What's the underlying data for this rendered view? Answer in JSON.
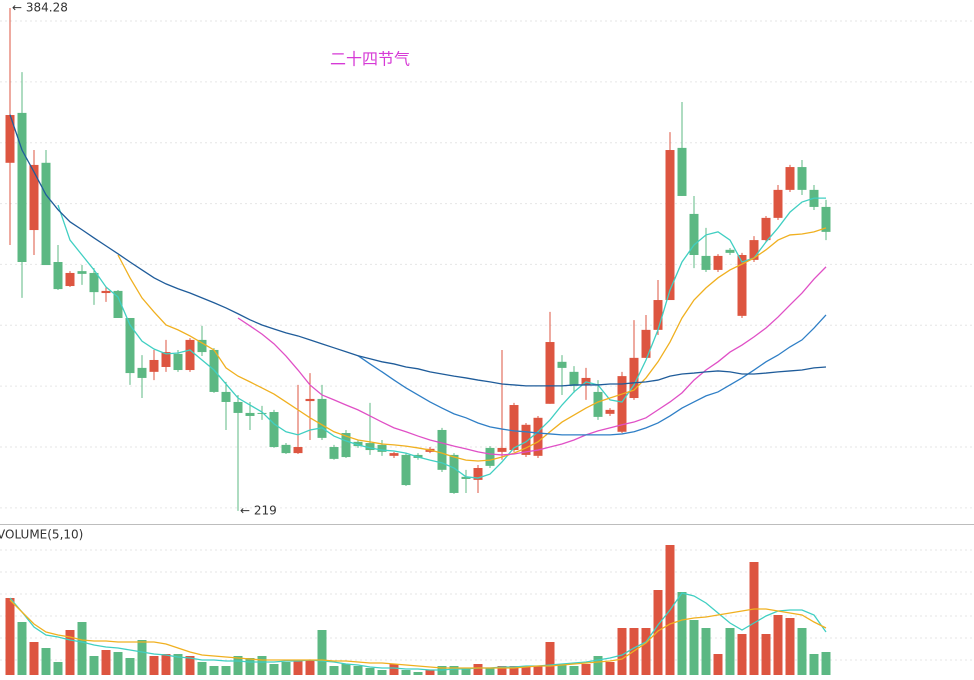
{
  "chart_data": [
    {
      "type": "candlestick",
      "title": "二十四节气",
      "annotations": [
        {
          "label": "← 384.28",
          "value": 384.28
        },
        {
          "label": "← 219",
          "value": 219
        }
      ],
      "open": [
        333.4,
        349.8,
        311.3,
        333.4,
        300.8,
        292.9,
        297.8,
        297.2,
        290.6,
        291.3,
        282.4,
        266.0,
        264.7,
        266.3,
        270.6,
        265.3,
        275.2,
        271.9,
        258.1,
        254.8,
        251.2,
        251.2,
        251.5,
        240.7,
        238.0,
        255.1,
        255.8,
        240.0,
        244.6,
        241.7,
        241.3,
        240.7,
        237.1,
        237.4,
        237.4,
        238.4,
        245.6,
        237.4,
        230.2,
        229.2,
        239.7,
        238.4,
        239.0,
        237.4,
        237.1,
        254.2,
        268.0,
        264.7,
        260.4,
        258.1,
        250.9,
        245.0,
        256.1,
        269.3,
        278.5,
        288.3,
        338.3,
        316.6,
        302.8,
        298.2,
        304.8,
        283.1,
        301.5,
        308.0,
        315.3,
        324.5,
        332.0,
        324.5,
        318.9
      ],
      "high": [
        384.28,
        363.2,
        337.6,
        337.6,
        306.4,
        297.8,
        299.8,
        298.8,
        292.6,
        291.6,
        282.4,
        270.2,
        271.9,
        275.2,
        271.9,
        275.8,
        279.8,
        272.5,
        261.4,
        257.1,
        254.8,
        253.5,
        252.2,
        241.3,
        260.4,
        264.3,
        260.4,
        240.7,
        245.6,
        242.3,
        254.5,
        242.3,
        238.4,
        238.0,
        238.0,
        240.0,
        246.3,
        238.0,
        232.5,
        234.1,
        240.3,
        271.9,
        254.5,
        247.9,
        250.2,
        284.4,
        270.2,
        266.6,
        266.0,
        262.0,
        252.8,
        264.7,
        281.7,
        283.4,
        294.9,
        343.5,
        353.4,
        322.5,
        312.0,
        303.4,
        305.4,
        303.8,
        309.3,
        315.9,
        326.1,
        332.7,
        334.3,
        326.1,
        321.2
      ],
      "low": [
        306.4,
        289.0,
        303.1,
        299.8,
        291.6,
        292.6,
        293.3,
        286.7,
        287.7,
        282.4,
        260.4,
        256.1,
        262.0,
        264.7,
        264.7,
        264.7,
        269.9,
        257.8,
        245.6,
        219,
        245.6,
        248.9,
        239.7,
        237.7,
        237.7,
        242.3,
        242.3,
        235.8,
        236.4,
        239.7,
        237.4,
        237.1,
        236.4,
        227.2,
        235.8,
        238.0,
        231.8,
        224.6,
        224.9,
        224.9,
        233.1,
        235.8,
        238.4,
        236.7,
        236.4,
        254.2,
        257.1,
        257.8,
        255.5,
        248.9,
        250.2,
        244.6,
        255.5,
        269.3,
        276.8,
        288.3,
        322.5,
        298.8,
        297.5,
        297.5,
        303.1,
        282.4,
        300.8,
        307.4,
        314.6,
        323.8,
        322.8,
        317.9,
        308.0
      ],
      "close": [
        349.1,
        300.8,
        332.7,
        299.8,
        291.9,
        297.2,
        296.9,
        290.9,
        291.3,
        282.4,
        264.3,
        262.7,
        268.6,
        271.2,
        265.3,
        275.2,
        271.2,
        258.1,
        254.8,
        251.2,
        250.2,
        250.9,
        240.0,
        238.0,
        240.0,
        255.8,
        243.0,
        236.1,
        236.7,
        240.3,
        239.0,
        238.4,
        238.0,
        227.5,
        236.4,
        239.4,
        232.5,
        224.9,
        229.5,
        233.1,
        233.8,
        239.7,
        253.8,
        247.3,
        249.6,
        274.5,
        266.0,
        260.1,
        262.7,
        249.9,
        252.2,
        263.3,
        269.3,
        278.5,
        288.3,
        337.6,
        322.5,
        303.1,
        298.2,
        302.8,
        303.8,
        303.1,
        308.0,
        315.3,
        324.5,
        332.0,
        324.5,
        318.9,
        310.7
      ],
      "up_color": "#dd5540",
      "down_color": "#5cb883",
      "ma_series": [
        {
          "color": "#40cfc2",
          "values": [
            null,
            null,
            null,
            null,
            319.5,
            308.0,
            303.1,
            298.2,
            292.6,
            289.3,
            280.1,
            274.8,
            272.2,
            270.6,
            270.9,
            271.9,
            268.6,
            265.3,
            260.7,
            256.1,
            253.8,
            251.5,
            247.6,
            245.0,
            244.0,
            245.6,
            246.3,
            243.6,
            242.0,
            240.7,
            239.7,
            239.0,
            238.7,
            238.0,
            236.7,
            235.7,
            234.8,
            233.1,
            230.2,
            229.8,
            231.1,
            235.1,
            239.7,
            241.7,
            245.0,
            248.9,
            253.8,
            258.1,
            261.4,
            260.4,
            255.5,
            254.8,
            260.4,
            268.6,
            278.5,
            291.6,
            300.8,
            306.4,
            309.7,
            310.7,
            308.0,
            300.8,
            302.1,
            307.4,
            312.0,
            317.2,
            320.5,
            321.8,
            321.8
          ]
        },
        {
          "color": "#f0b020",
          "values": [
            null,
            null,
            null,
            null,
            null,
            null,
            null,
            null,
            null,
            303.1,
            295.6,
            289.0,
            284.4,
            280.1,
            278.5,
            276.5,
            274.2,
            271.9,
            266.0,
            263.3,
            261.4,
            259.4,
            257.4,
            254.8,
            252.2,
            249.6,
            247.3,
            245.0,
            243.6,
            242.3,
            241.7,
            241.0,
            240.7,
            240.3,
            239.7,
            239.0,
            238.0,
            236.7,
            235.7,
            235.4,
            235.7,
            236.7,
            238.0,
            239.7,
            241.7,
            245.0,
            248.2,
            250.5,
            252.8,
            254.8,
            256.1,
            257.4,
            258.7,
            262.7,
            268.0,
            274.5,
            282.4,
            288.3,
            292.3,
            295.6,
            298.2,
            300.1,
            302.1,
            304.8,
            308.0,
            309.7,
            310.0,
            310.7,
            312.0
          ]
        },
        {
          "color": "#e050c6",
          "values": [
            null,
            null,
            null,
            null,
            null,
            null,
            null,
            null,
            null,
            null,
            null,
            null,
            null,
            null,
            null,
            null,
            null,
            null,
            null,
            282.4,
            279.8,
            277.1,
            273.9,
            269.9,
            265.3,
            260.4,
            257.1,
            255.5,
            253.8,
            252.2,
            250.2,
            248.2,
            246.3,
            245.0,
            243.6,
            242.3,
            241.3,
            240.3,
            239.4,
            238.4,
            237.7,
            237.4,
            237.7,
            238.4,
            239.0,
            240.0,
            241.0,
            242.3,
            244.0,
            245.3,
            246.3,
            247.3,
            248.2,
            249.6,
            252.2,
            254.8,
            257.8,
            262.0,
            265.3,
            268.0,
            271.2,
            273.5,
            276.2,
            279.1,
            282.7,
            286.7,
            290.6,
            295.2,
            299.2
          ]
        },
        {
          "color": "#2f7fc6",
          "values": [
            null,
            null,
            null,
            null,
            null,
            null,
            null,
            null,
            null,
            null,
            null,
            null,
            null,
            null,
            null,
            null,
            null,
            null,
            null,
            null,
            null,
            null,
            null,
            null,
            null,
            null,
            null,
            null,
            null,
            270.0,
            267.3,
            264.7,
            262.0,
            259.4,
            257.1,
            254.8,
            252.8,
            250.9,
            249.6,
            247.9,
            246.6,
            245.9,
            245.3,
            245.0,
            244.6,
            244.3,
            244.0,
            244.0,
            244.0,
            244.0,
            244.0,
            244.3,
            245.0,
            246.3,
            247.9,
            250.2,
            252.8,
            254.8,
            256.8,
            258.1,
            260.4,
            262.7,
            265.3,
            268.0,
            270.2,
            272.9,
            275.2,
            279.1,
            283.4
          ]
        },
        {
          "color": "#1f5c9a",
          "values": [
            349.2,
            337.6,
            330.4,
            322.9,
            318.0,
            314.0,
            311.4,
            308.7,
            306.1,
            303.5,
            300.8,
            298.2,
            295.6,
            293.6,
            292.0,
            290.6,
            289.0,
            287.4,
            285.7,
            283.8,
            281.8,
            280.1,
            278.8,
            277.5,
            276.5,
            275.2,
            273.9,
            272.6,
            271.3,
            270.0,
            269.0,
            268.0,
            267.3,
            266.3,
            265.7,
            264.7,
            264.0,
            263.3,
            262.7,
            262.0,
            261.4,
            260.7,
            260.4,
            260.1,
            260.1,
            260.1,
            260.1,
            260.4,
            260.4,
            260.4,
            260.7,
            260.7,
            261.1,
            261.4,
            262.0,
            263.3,
            264.0,
            264.3,
            264.7,
            265.0,
            264.7,
            264.0,
            264.0,
            264.3,
            264.7,
            265.0,
            265.3,
            266.0,
            266.3
          ]
        }
      ],
      "ylim": [
        214.7,
        386.9
      ],
      "yticks": [
        220,
        240,
        260,
        280,
        300,
        320,
        340,
        360,
        380
      ],
      "grid": true
    },
    {
      "type": "bar",
      "title": "VOLUME(5,10)",
      "values": [
        77,
        53,
        33,
        27,
        13,
        45,
        53,
        19,
        25,
        23,
        17,
        35,
        19,
        21,
        21,
        19,
        13,
        9,
        9,
        19,
        17,
        19,
        11,
        13,
        15,
        15,
        45,
        9,
        11,
        9,
        7,
        5,
        11,
        5,
        3,
        5,
        9,
        9,
        7,
        11,
        7,
        9,
        9,
        9,
        9,
        33,
        11,
        9,
        11,
        19,
        13,
        47,
        47,
        47,
        85,
        130,
        83,
        55,
        47,
        21,
        47,
        41,
        113,
        41,
        60,
        57,
        47,
        21,
        23
      ],
      "ma_series": [
        {
          "color": "#40cfc2",
          "values": [
            77,
            63,
            48,
            40,
            38,
            35,
            33,
            30,
            28,
            27,
            25,
            23,
            21,
            20,
            18,
            17,
            15,
            15,
            14,
            14,
            13,
            13,
            13,
            14,
            14,
            15,
            14,
            13,
            11,
            10,
            8,
            7,
            7,
            6,
            6,
            5,
            5,
            6,
            6,
            7,
            7,
            8,
            8,
            9,
            9,
            10,
            11,
            12,
            13,
            15,
            17,
            20,
            27,
            33,
            50,
            65,
            82,
            79,
            72,
            62,
            52,
            45,
            52,
            59,
            64,
            65,
            65,
            60,
            43
          ]
        },
        {
          "color": "#f0b020",
          "values": [
            75,
            63,
            51,
            43,
            40,
            38,
            35,
            34,
            34,
            33,
            33,
            33,
            33,
            31,
            27,
            23,
            20,
            19,
            18,
            17,
            16,
            15,
            15,
            15,
            15,
            15,
            15,
            14,
            14,
            13,
            12,
            12,
            11,
            10,
            9,
            8,
            7,
            7,
            7,
            7,
            7,
            7,
            7,
            8,
            9,
            9,
            10,
            11,
            12,
            13,
            14,
            16,
            24,
            32,
            44,
            51,
            55,
            57,
            58,
            60,
            62,
            64,
            66,
            66,
            64,
            62,
            60,
            53,
            47
          ]
        }
      ],
      "ylim": [
        0,
        135
      ],
      "yticks": [
        15,
        37,
        59,
        81,
        103,
        125
      ],
      "grid": true
    }
  ]
}
